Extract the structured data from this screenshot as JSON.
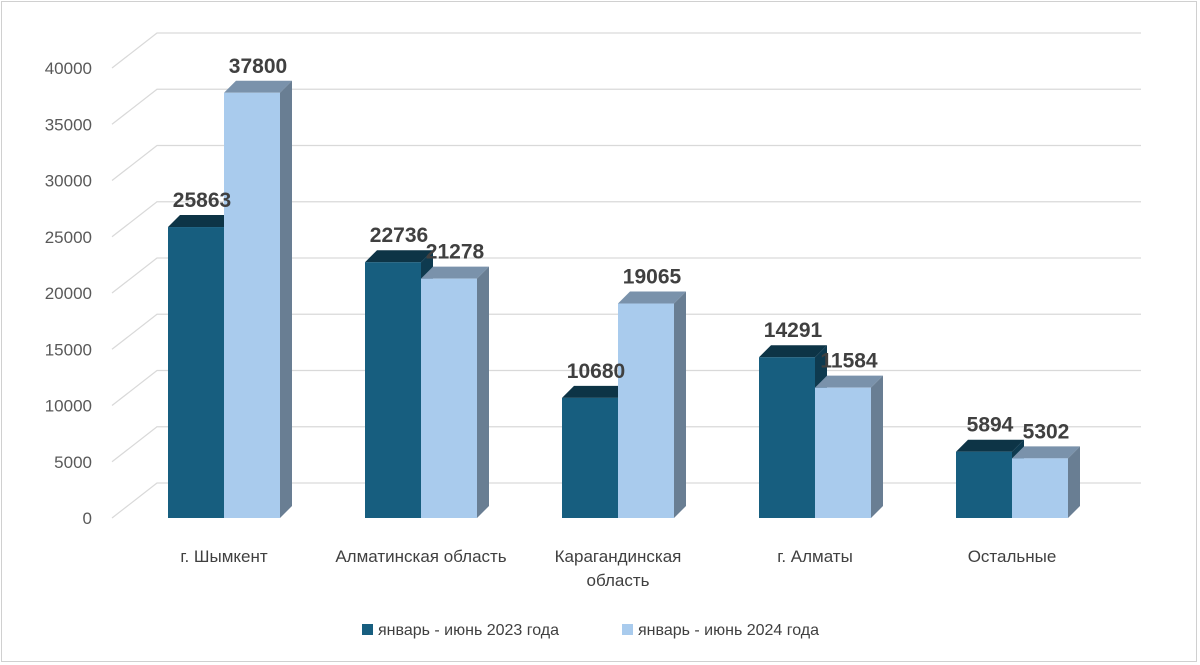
{
  "chart_data": {
    "type": "bar",
    "style": "3d-clustered-column",
    "categories": [
      "г. Шымкент",
      "Алматинская область",
      "Карагандинская область",
      "г. Алматы",
      "Остальные"
    ],
    "category_lines": [
      [
        "г. Шымкент"
      ],
      [
        "Алматинская область"
      ],
      [
        "Карагандинская",
        "область"
      ],
      [
        "г. Алматы"
      ],
      [
        "Остальные"
      ]
    ],
    "series": [
      {
        "name": "январь - июнь 2023 года",
        "values": [
          25863,
          22736,
          10680,
          14291,
          5894
        ],
        "color": "#175e7f"
      },
      {
        "name": "январь - июнь 2024 года",
        "values": [
          37800,
          21278,
          19065,
          11584,
          5302
        ],
        "color": "#a9cbed"
      }
    ],
    "ylim": [
      0,
      40000
    ],
    "yticks": [
      0,
      5000,
      10000,
      15000,
      20000,
      25000,
      30000,
      35000,
      40000
    ],
    "grid": true,
    "legend_position": "bottom"
  }
}
